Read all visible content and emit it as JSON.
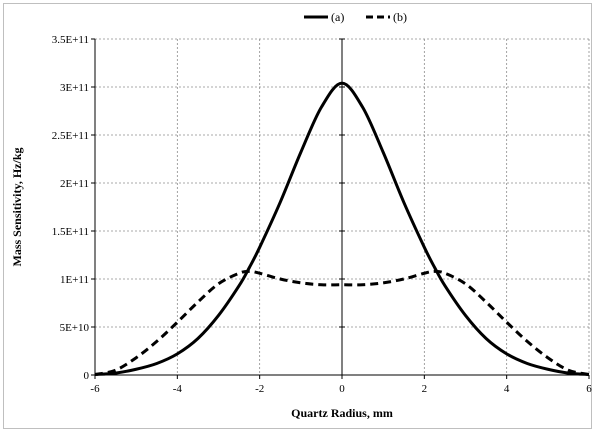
{
  "chart_data": {
    "type": "line",
    "title": "",
    "xlabel": "Quartz Radius, mm",
    "ylabel": "Mass Sensitivity, Hz/kg",
    "xlim": [
      -6,
      6
    ],
    "ylim": [
      0,
      350000000000
    ],
    "x_ticks": [
      -6,
      -4,
      -2,
      0,
      2,
      4,
      6
    ],
    "x_tick_labels": [
      "-6",
      "-4",
      "-2",
      "0",
      "2",
      "4",
      "6"
    ],
    "y_ticks": [
      0,
      50000000000,
      100000000000,
      150000000000,
      200000000000,
      250000000000,
      300000000000,
      350000000000
    ],
    "y_tick_labels": [
      "0",
      "5E+10",
      "1E+11",
      "1.5E+11",
      "2E+11",
      "2.5E+11",
      "3E+11",
      "3.5E+11"
    ],
    "grid": true,
    "legend_position": "top",
    "x": [
      -6,
      -5.5,
      -5,
      -4.5,
      -4,
      -3.5,
      -3,
      -2.5,
      -2.25,
      -2,
      -1.5,
      -1,
      -0.5,
      0,
      0.5,
      1,
      1.5,
      2,
      2.25,
      2.5,
      3,
      3.5,
      4,
      4.5,
      5,
      5.5,
      6
    ],
    "series": [
      {
        "name": "(a)",
        "style": "solid",
        "color": "#000000",
        "values": [
          500000000.0,
          2000000000.0,
          6000000000.0,
          12000000000.0,
          22000000000.0,
          38000000000.0,
          62000000000.0,
          93000000000.0,
          112000000000.0,
          133000000000.0,
          180000000000.0,
          232000000000.0,
          279000000000.0,
          304000000000.0,
          279000000000.0,
          232000000000.0,
          180000000000.0,
          133000000000.0,
          112000000000.0,
          93000000000.0,
          62000000000.0,
          38000000000.0,
          22000000000.0,
          12000000000.0,
          6000000000.0,
          2000000000.0,
          500000000.0
        ]
      },
      {
        "name": "(b)",
        "style": "dashed",
        "color": "#000000",
        "values": [
          500000000.0,
          5000000000.0,
          18000000000.0,
          35000000000.0,
          55000000000.0,
          76000000000.0,
          95000000000.0,
          106000000000.0,
          108000000000.0,
          106000000000.0,
          100000000000.0,
          96000000000.0,
          94000000000.0,
          94000000000.0,
          94000000000.0,
          96000000000.0,
          100000000000.0,
          106000000000.0,
          108000000000.0,
          106000000000.0,
          95000000000.0,
          76000000000.0,
          55000000000.0,
          35000000000.0,
          18000000000.0,
          5000000000.0,
          500000000.0
        ]
      }
    ]
  }
}
